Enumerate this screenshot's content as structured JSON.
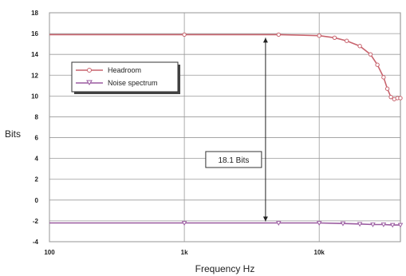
{
  "chart_data": {
    "type": "line",
    "xlabel": "Frequency Hz",
    "ylabel": "Bits",
    "x_scale": "log",
    "xlim": [
      100,
      40000
    ],
    "ylim": [
      -4,
      18
    ],
    "x_ticks": [
      {
        "value": 100,
        "label": "100"
      },
      {
        "value": 1000,
        "label": "1k"
      },
      {
        "value": 10000,
        "label": "10k"
      }
    ],
    "y_ticks": [
      -4,
      -2,
      0,
      2,
      4,
      6,
      8,
      10,
      12,
      14,
      16,
      18
    ],
    "grid": true,
    "legend_position": "upper-left",
    "series": [
      {
        "name": "Headroom",
        "color": "#c8646e",
        "marker": "circle",
        "x": [
          100,
          1000,
          5000,
          10000,
          13000,
          16000,
          20000,
          24000,
          27000,
          30000,
          32000,
          34000,
          36000,
          38000,
          40000
        ],
        "y": [
          15.9,
          15.9,
          15.9,
          15.8,
          15.6,
          15.3,
          14.8,
          14.0,
          13.0,
          11.8,
          10.7,
          9.9,
          9.7,
          9.8,
          9.8
        ]
      },
      {
        "name": "Noise spectrum",
        "color": "#9a5aa0",
        "marker": "triangle-down",
        "x": [
          100,
          1000,
          5000,
          10000,
          15000,
          20000,
          25000,
          30000,
          35000,
          40000
        ],
        "y": [
          -2.2,
          -2.2,
          -2.2,
          -2.2,
          -2.25,
          -2.3,
          -2.35,
          -2.35,
          -2.4,
          -2.4
        ]
      }
    ],
    "annotations": [
      {
        "text": "18.1 Bits",
        "x": 4000,
        "y_from": -2.2,
        "y_to": 15.9
      }
    ]
  }
}
